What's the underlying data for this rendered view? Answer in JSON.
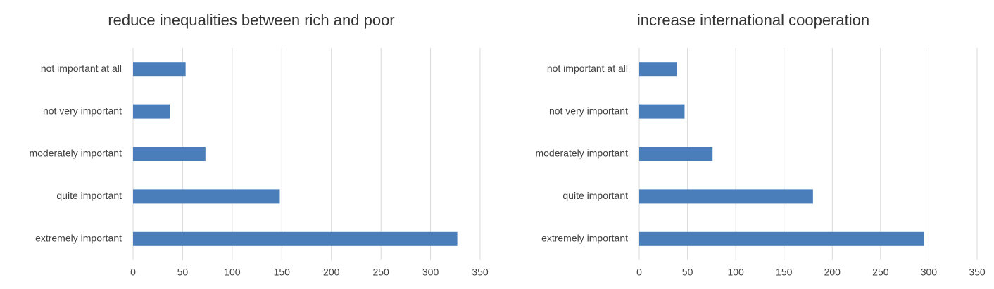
{
  "chart_data": [
    {
      "type": "bar",
      "orientation": "horizontal",
      "title": "reduce inequalities between rich and poor",
      "categories": [
        "not important at all",
        "not very important",
        "moderately important",
        "quite important",
        "extremely important"
      ],
      "values": [
        53,
        37,
        73,
        148,
        327
      ],
      "color": "#4a7ebb",
      "xlim": [
        0,
        350
      ],
      "xticks": [
        0,
        50,
        100,
        150,
        200,
        250,
        300,
        350
      ],
      "grid": true
    },
    {
      "type": "bar",
      "orientation": "horizontal",
      "title": "increase international cooperation",
      "categories": [
        "not important at all",
        "not very important",
        "moderately important",
        "quite important",
        "extremely important"
      ],
      "values": [
        39,
        47,
        76,
        180,
        295
      ],
      "color": "#4a7ebb",
      "xlim": [
        0,
        350
      ],
      "xticks": [
        0,
        50,
        100,
        150,
        200,
        250,
        300,
        350
      ],
      "grid": true
    }
  ]
}
